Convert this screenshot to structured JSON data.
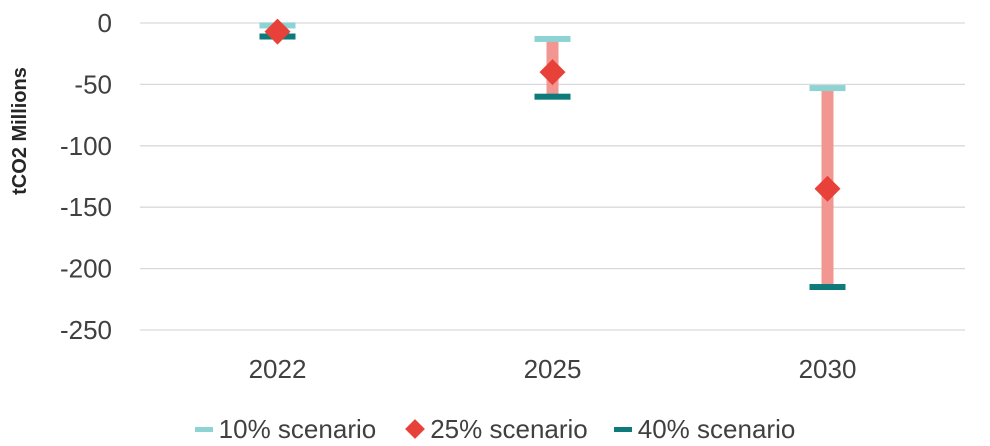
{
  "chart_data": {
    "type": "error-bar",
    "title": "",
    "xlabel": "",
    "ylabel": "tCO2 Millions",
    "categories": [
      "2022",
      "2025",
      "2030"
    ],
    "ylim": [
      -250,
      0
    ],
    "yticks": [
      0,
      -50,
      -100,
      -150,
      -200,
      -250
    ],
    "grid": true,
    "legend_position": "bottom",
    "series": [
      {
        "name": "10% scenario",
        "marker": "dash",
        "color": "#8ED3D3",
        "values": [
          -2,
          -13,
          -53
        ]
      },
      {
        "name": "25% scenario",
        "marker": "diamond",
        "color": "#E8413A",
        "values": [
          -7,
          -40,
          -135
        ]
      },
      {
        "name": "40% scenario",
        "marker": "dash",
        "color": "#0E7A7A",
        "values": [
          -11,
          -60,
          -215
        ]
      }
    ],
    "range_bar_color": "#F29691"
  }
}
